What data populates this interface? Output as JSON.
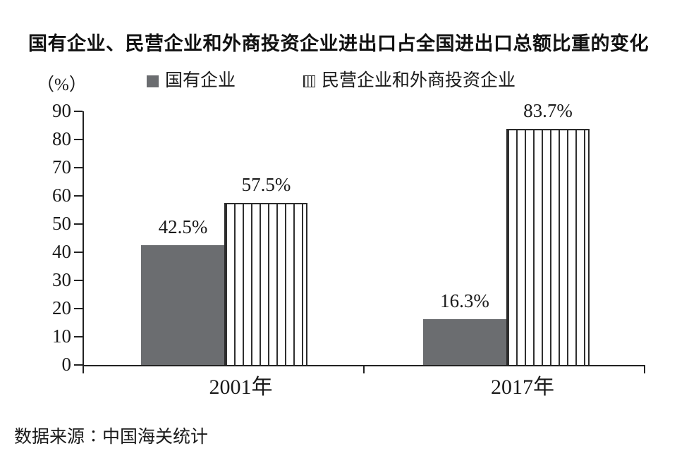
{
  "chart_data": {
    "type": "bar",
    "title": "国有企业、民营企业和外商投资企业进出口占全国进出口总额比重的变化",
    "unit_label": "（%）",
    "categories": [
      "2001年",
      "2017年"
    ],
    "series": [
      {
        "name": "国有企业",
        "values": [
          42.5,
          16.3
        ],
        "value_labels": [
          "42.5%",
          "16.3%"
        ],
        "pattern": "solid",
        "color": "#6b6d70"
      },
      {
        "name": "民营企业和外商投资企业",
        "values": [
          57.5,
          83.7
        ],
        "value_labels": [
          "57.5%",
          "83.7%"
        ],
        "pattern": "vertical-stripes",
        "color": "#ffffff",
        "stripe_color": "#2f2f2f"
      }
    ],
    "ylim": [
      0,
      90
    ],
    "yticks": [
      0,
      10,
      20,
      30,
      40,
      50,
      60,
      70,
      80,
      90
    ],
    "grid": false,
    "legend_position": "top",
    "axis_color": "#222222",
    "source": "数据来源∶中国海关统计"
  }
}
